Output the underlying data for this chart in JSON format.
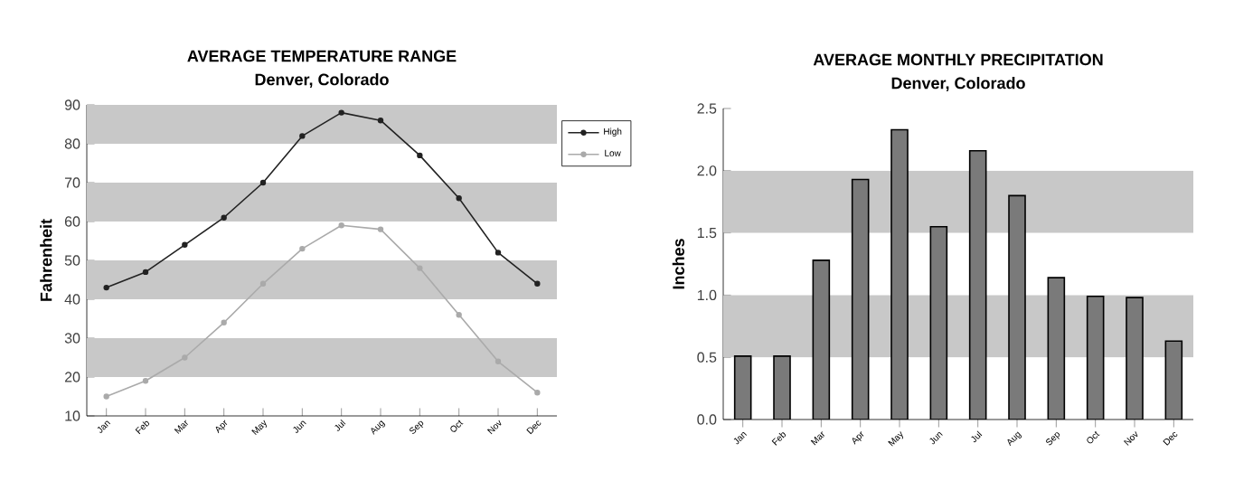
{
  "chart_data": [
    {
      "type": "line",
      "title": "AVERAGE TEMPERATURE RANGE",
      "subtitle": "Denver, Colorado",
      "ylabel": "Fahrenheit",
      "categories": [
        "Jan",
        "Feb",
        "Mar",
        "Apr",
        "May",
        "Jun",
        "Jul",
        "Aug",
        "Sep",
        "Oct",
        "Nov",
        "Dec"
      ],
      "series": [
        {
          "name": "High",
          "color": "#222222",
          "values": [
            43,
            47,
            54,
            61,
            70,
            82,
            88,
            86,
            77,
            66,
            52,
            44
          ]
        },
        {
          "name": "Low",
          "color": "#aaaaaa",
          "values": [
            15,
            19,
            25,
            34,
            44,
            53,
            59,
            58,
            48,
            36,
            24,
            16
          ]
        }
      ],
      "ylim": [
        10,
        90
      ],
      "yticks": [
        10,
        20,
        30,
        40,
        50,
        60,
        70,
        80,
        90
      ],
      "bands": [
        {
          "axis": "y",
          "from": 20,
          "to": 30,
          "color": "#c8c8c8"
        },
        {
          "axis": "y",
          "from": 40,
          "to": 50,
          "color": "#c8c8c8"
        },
        {
          "axis": "y",
          "from": 60,
          "to": 70,
          "color": "#c8c8c8"
        },
        {
          "axis": "y",
          "from": 80,
          "to": 90,
          "color": "#c8c8c8"
        }
      ],
      "marker": "circle",
      "legend": "top right",
      "grid": false
    },
    {
      "type": "bar",
      "title": "AVERAGE MONTHLY PRECIPITATION",
      "subtitle": "Denver, Colorado",
      "ylabel": "Inches",
      "categories": [
        "Jan",
        "Feb",
        "Mar",
        "Apr",
        "May",
        "Jun",
        "Jul",
        "Aug",
        "Sep",
        "Oct",
        "Nov",
        "Dec"
      ],
      "values": [
        0.51,
        0.51,
        1.28,
        1.93,
        2.33,
        1.55,
        2.16,
        1.8,
        1.14,
        0.99,
        0.98,
        0.63
      ],
      "color": "#7a7a7a",
      "ylim": [
        0,
        2.5
      ],
      "yticks": [
        {
          "value": 0,
          "label": "0.0"
        },
        0.5,
        {
          "value": 1,
          "label": "1.0"
        },
        1.5,
        {
          "value": 2,
          "label": "2.0"
        },
        2.5
      ],
      "bands": [
        {
          "axis": "y",
          "from": 0.5,
          "to": 1.0,
          "color": "#c8c8c8"
        },
        {
          "axis": "y",
          "from": 1.5,
          "to": 2.0,
          "color": "#c8c8c8"
        }
      ],
      "grid": false
    }
  ]
}
